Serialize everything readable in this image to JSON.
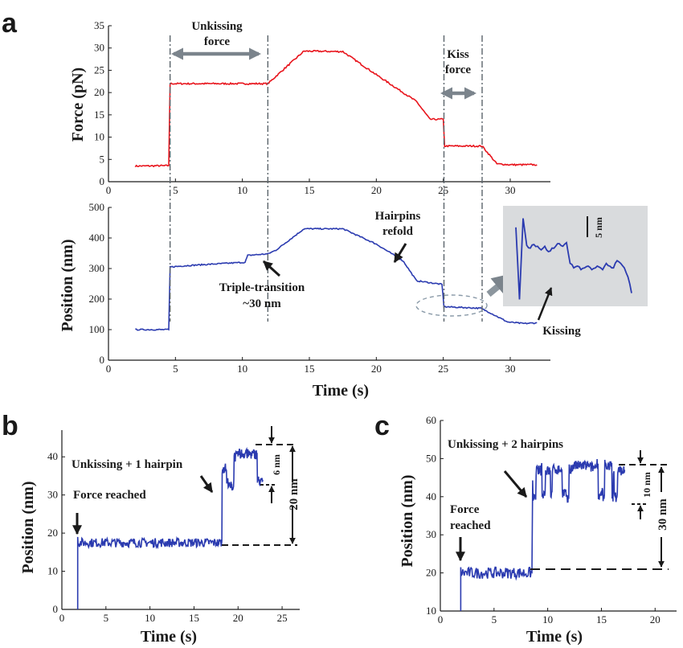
{
  "panels": {
    "a": {
      "label": "a",
      "force_chart": {
        "type": "line",
        "ylabel": "Force (pN)",
        "xlim": [
          0,
          33
        ],
        "ylim": [
          0,
          35
        ],
        "xticks": [
          0,
          5,
          10,
          15,
          20,
          25,
          30
        ],
        "yticks": [
          0,
          5,
          10,
          15,
          20,
          25,
          30,
          35
        ],
        "color": "#e8141c",
        "x": [
          2,
          4.5,
          4.6,
          5,
          8,
          10,
          11.9,
          13,
          14.6,
          17.5,
          20,
          23,
          24,
          25,
          25.1,
          27.9,
          29,
          30,
          32
        ],
        "y": [
          3.5,
          3.6,
          22,
          22,
          22,
          22,
          22,
          25,
          29.3,
          29.2,
          24,
          18,
          14,
          14,
          8,
          8,
          4,
          3.8,
          3.8
        ]
      },
      "position_chart": {
        "type": "line",
        "ylabel": "Position (nm)",
        "xlabel": "Time (s)",
        "xlim": [
          0,
          33
        ],
        "ylim": [
          0,
          500
        ],
        "xticks": [
          0,
          5,
          10,
          15,
          20,
          25,
          30
        ],
        "yticks": [
          0,
          100,
          200,
          300,
          400,
          500
        ],
        "color": "#2b3bb0",
        "x": [
          2,
          4.5,
          4.6,
          6,
          8,
          10,
          10.2,
          10.4,
          11.9,
          12.5,
          14.6,
          17.5,
          20,
          22,
          23,
          24.9,
          25.05,
          27.8,
          28.5,
          29.8,
          31,
          32
        ],
        "y": [
          100,
          100,
          305,
          310,
          315,
          320,
          320,
          343,
          348,
          360,
          430,
          430,
          380,
          325,
          260,
          248,
          175,
          170,
          155,
          125,
          120,
          122
        ]
      },
      "vertical_markers": [
        4.6,
        11.9,
        25.05,
        27.9
      ],
      "annotations": {
        "unkissing_force_line1": "Unkissing",
        "unkissing_force_line2": "force",
        "kiss_force_line1": "Kiss",
        "kiss_force_line2": "force",
        "hairpins_refold_line1": "Hairpins",
        "hairpins_refold_line2": "refold",
        "triple_transition_line1": "Triple-transition",
        "triple_transition_line2": "~30 nm",
        "kissing": "Kissing",
        "scale_bar": "5 nm"
      },
      "inset_trace": [
        0.15,
        0.95,
        0.05,
        0.35,
        0.38,
        0.34,
        0.36,
        0.4,
        0.36,
        0.42,
        0.38,
        0.36,
        0.33,
        0.36,
        0.32,
        0.55,
        0.6,
        0.58,
        0.62,
        0.6,
        0.58,
        0.62,
        0.6,
        0.59,
        0.62,
        0.55,
        0.58,
        0.6,
        0.52,
        0.55,
        0.6,
        0.7,
        0.88
      ]
    },
    "b": {
      "label": "b",
      "chart": {
        "type": "line",
        "ylabel": "Position (nm)",
        "xlabel": "Time (s)",
        "xlim": [
          0,
          27
        ],
        "ylim": [
          0,
          47
        ],
        "xticks": [
          0,
          5,
          10,
          15,
          20,
          25
        ],
        "yticks": [
          0,
          10,
          20,
          30,
          40
        ],
        "color": "#2b3bb0",
        "levels": {
          "start": 1.8,
          "base": 17.5,
          "transition": 18.2,
          "end": 22.8,
          "high": 37,
          "noise_low": 1.2,
          "noise_high": 4.5
        }
      },
      "annotations": {
        "force_reached": "Force reached",
        "unkissing_1_hairpin": "Unkissing + 1 hairpin",
        "dim_6nm": "6 nm",
        "dim_20nm": "20 nm"
      }
    },
    "c": {
      "label": "c",
      "chart": {
        "type": "line",
        "ylabel": "Position (nm)",
        "xlabel": "Time (s)",
        "xlim": [
          0,
          22
        ],
        "ylim": [
          10,
          60
        ],
        "xticks": [
          0,
          5,
          10,
          15,
          20
        ],
        "yticks": [
          10,
          20,
          30,
          40,
          50,
          60
        ],
        "color": "#2b3bb0",
        "levels": {
          "start": 1.9,
          "base": 20,
          "transition": 8.6,
          "end": 17.2,
          "high": 44,
          "noise_low": 1.5,
          "noise_high": 4.5
        }
      },
      "annotations": {
        "force_reached_line1": "Force",
        "force_reached_line2": "reached",
        "unkissing_2_hairpins": "Unkissing + 2 hairpins",
        "dim_10nm": "10 nm",
        "dim_30nm": "30 nm"
      }
    }
  }
}
